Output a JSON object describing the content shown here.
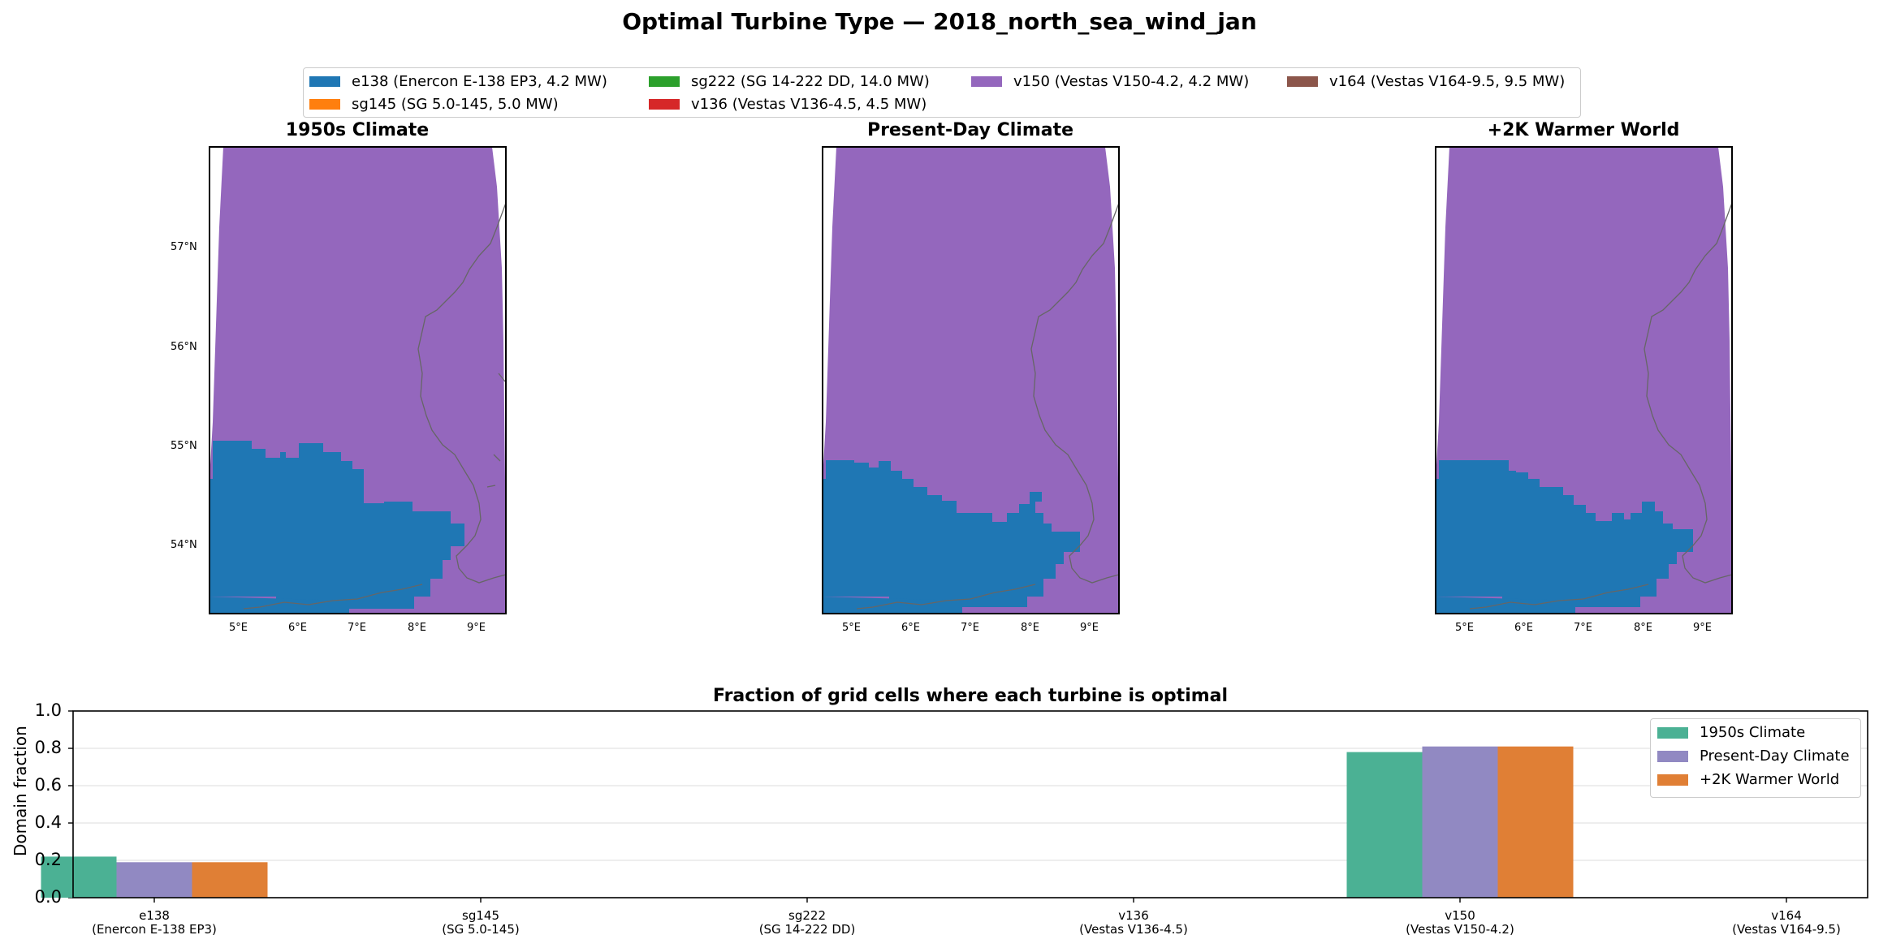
{
  "suptitle": "Optimal Turbine Type — 2018_north_sea_wind_jan",
  "legend": [
    {
      "label": "e138 (Enercon E-138 EP3, 4.2 MW)",
      "color": "#1f77b4"
    },
    {
      "label": "sg145 (SG 5.0-145, 5.0 MW)",
      "color": "#ff7f0e"
    },
    {
      "label": "sg222 (SG 14-222 DD, 14.0 MW)",
      "color": "#2ca02c"
    },
    {
      "label": "v136 (Vestas V136-4.5, 4.5 MW)",
      "color": "#d62728"
    },
    {
      "label": "v150 (Vestas V150-4.2, 4.2 MW)",
      "color": "#9467bd"
    },
    {
      "label": "v164 (Vestas V164-9.5, 9.5 MW)",
      "color": "#8c564b"
    }
  ],
  "maps": {
    "titles": [
      "1950s Climate",
      "Present-Day Climate",
      "+2K Warmer World"
    ],
    "lat_ticks": [
      "57°N",
      "56°N",
      "55°N",
      "54°N"
    ],
    "lon_ticks": [
      "5°E",
      "6°E",
      "7°E",
      "8°E",
      "9°E"
    ]
  },
  "chart_data": {
    "type": "bar",
    "title": "Fraction of grid cells where each turbine is optimal",
    "xlabel": "",
    "ylabel": "Domain fraction",
    "ylim": [
      0,
      1.0
    ],
    "yticks": [
      "0.0",
      "0.2",
      "0.4",
      "0.6",
      "0.8",
      "1.0"
    ],
    "grid": "y",
    "legend_position": "top-right",
    "categories": [
      [
        "e138",
        "(Enercon E-138 EP3)"
      ],
      [
        "sg145",
        "(SG 5.0-145)"
      ],
      [
        "sg222",
        "(SG 14-222 DD)"
      ],
      [
        "v136",
        "(Vestas V136-4.5)"
      ],
      [
        "v150",
        "(Vestas V150-4.2)"
      ],
      [
        "v164",
        "(Vestas V164-9.5)"
      ]
    ],
    "series": [
      {
        "name": "1950s Climate",
        "color": "#4bb194",
        "values": [
          0.22,
          0.0,
          0.0,
          0.0,
          0.78,
          0.0
        ]
      },
      {
        "name": "Present-Day Climate",
        "color": "#9189c2",
        "values": [
          0.19,
          0.0,
          0.0,
          0.0,
          0.81,
          0.0
        ]
      },
      {
        "name": "+2K Warmer World",
        "color": "#e07f35",
        "values": [
          0.19,
          0.0,
          0.0,
          0.0,
          0.81,
          0.0
        ]
      }
    ]
  }
}
